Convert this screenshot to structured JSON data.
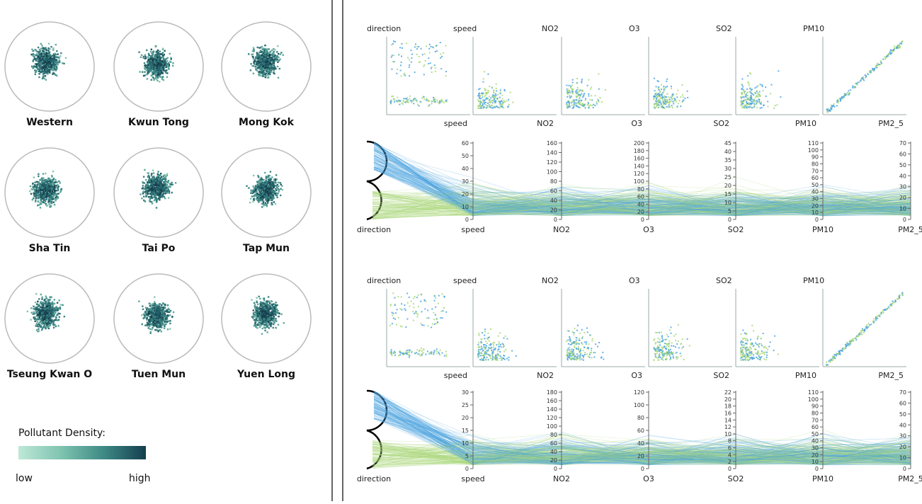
{
  "colors": {
    "density_low": "#bfe8d8",
    "density_high": "#143f4f",
    "group_blue": "#4aa3df",
    "group_green": "#a8d878"
  },
  "stations": [
    {
      "name": "Western"
    },
    {
      "name": "Kwun Tong"
    },
    {
      "name": "Mong Kok"
    },
    {
      "name": "Sha Tin"
    },
    {
      "name": "Tai Po"
    },
    {
      "name": "Tap Mun"
    },
    {
      "name": "Tseung Kwan O"
    },
    {
      "name": "Tuen Mun"
    },
    {
      "name": "Yuen Long"
    }
  ],
  "legend": {
    "title": "Pollutant Density:",
    "low": "low",
    "high": "high"
  },
  "chart_data": [
    {
      "type": "scatter",
      "panel": "upper",
      "pairs": [
        {
          "y": "direction",
          "x": "speed"
        },
        {
          "y": "speed",
          "x": "NO2"
        },
        {
          "y": "NO2",
          "x": "O3"
        },
        {
          "y": "O3",
          "x": "SO2"
        },
        {
          "y": "SO2",
          "x": "PM10"
        },
        {
          "y": "PM10",
          "x": "PM2_5"
        }
      ]
    },
    {
      "type": "parallel_coordinates",
      "panel": "upper",
      "axes": [
        {
          "name": "direction",
          "ticks": []
        },
        {
          "name": "speed",
          "ticks": [
            0,
            10,
            20,
            30,
            40,
            50,
            60
          ]
        },
        {
          "name": "NO2",
          "ticks": [
            0,
            20,
            40,
            60,
            80,
            100,
            120,
            140,
            160
          ]
        },
        {
          "name": "O3",
          "ticks": [
            0,
            20,
            40,
            60,
            80,
            100,
            120,
            140,
            160,
            180,
            200
          ]
        },
        {
          "name": "SO2",
          "ticks": [
            0,
            5,
            10,
            15,
            20,
            25,
            30,
            35,
            40,
            45
          ]
        },
        {
          "name": "PM10",
          "ticks": [
            0,
            10,
            20,
            30,
            40,
            50,
            60,
            70,
            80,
            90,
            100,
            110
          ]
        },
        {
          "name": "PM2_5",
          "ticks": [
            0,
            10,
            20,
            30,
            40,
            50,
            60,
            70
          ]
        }
      ]
    },
    {
      "type": "scatter",
      "panel": "lower",
      "pairs": [
        {
          "y": "direction",
          "x": "speed"
        },
        {
          "y": "speed",
          "x": "NO2"
        },
        {
          "y": "NO2",
          "x": "O3"
        },
        {
          "y": "O3",
          "x": "SO2"
        },
        {
          "y": "SO2",
          "x": "PM10"
        },
        {
          "y": "PM10",
          "x": "PM2_5"
        }
      ]
    },
    {
      "type": "parallel_coordinates",
      "panel": "lower",
      "axes": [
        {
          "name": "direction",
          "ticks": []
        },
        {
          "name": "speed",
          "ticks": [
            0,
            5,
            10,
            15,
            20,
            25,
            30
          ]
        },
        {
          "name": "NO2",
          "ticks": [
            0,
            20,
            40,
            60,
            80,
            100,
            120,
            140,
            160,
            180
          ]
        },
        {
          "name": "O3",
          "ticks": [
            0,
            20,
            40,
            60,
            80,
            100,
            120
          ]
        },
        {
          "name": "SO2",
          "ticks": [
            0,
            2,
            4,
            6,
            8,
            10,
            12,
            14,
            16,
            18,
            20,
            22
          ]
        },
        {
          "name": "PM10",
          "ticks": [
            0,
            10,
            20,
            30,
            40,
            50,
            60,
            70,
            80,
            90,
            100,
            110
          ]
        },
        {
          "name": "PM2_5",
          "ticks": [
            0,
            10,
            20,
            30,
            40,
            50,
            60,
            70
          ]
        }
      ]
    }
  ]
}
